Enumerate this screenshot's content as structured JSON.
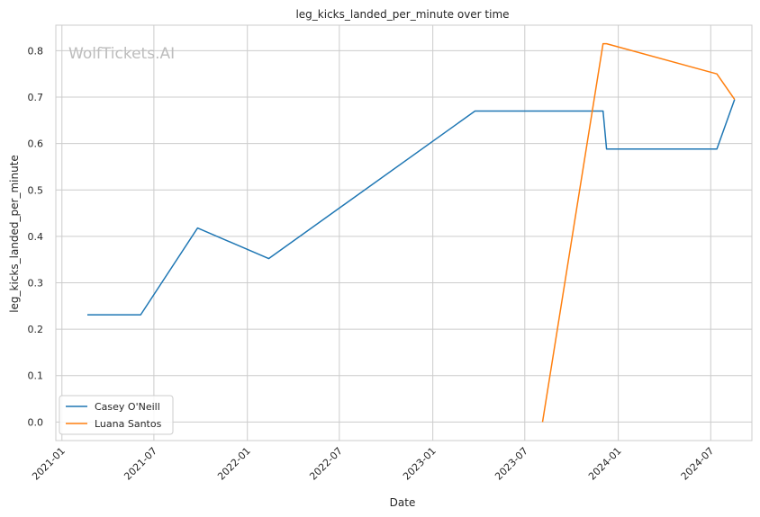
{
  "watermark": "WolfTickets.AI",
  "colors": {
    "grid": "#cccccc",
    "axes": "#cccccc",
    "series_0": "#1f77b4",
    "series_1": "#ff7f0e",
    "background": "#ffffff"
  },
  "chart_data": {
    "type": "line",
    "title": "leg_kicks_landed_per_minute over time",
    "xlabel": "Date",
    "ylabel": "leg_kicks_landed_per_minute",
    "x_ticks": [
      "2021-01",
      "2021-07",
      "2022-01",
      "2022-07",
      "2023-01",
      "2023-07",
      "2024-01",
      "2024-07"
    ],
    "y_ticks": [
      0.0,
      0.1,
      0.2,
      0.3,
      0.4,
      0.5,
      0.6,
      0.7,
      0.8
    ],
    "y_tick_labels": [
      "0.0",
      "0.1",
      "0.2",
      "0.3",
      "0.4",
      "0.5",
      "0.6",
      "0.7",
      "0.8"
    ],
    "ylim": [
      -0.04,
      0.855
    ],
    "xlim": [
      "2020-12-20",
      "2024-09-20"
    ],
    "grid": true,
    "legend_position": "lower-left",
    "series": [
      {
        "name": "Casey O'Neill",
        "points": [
          {
            "x": "2021-02-20",
            "y": 0.231
          },
          {
            "x": "2021-06-05",
            "y": 0.231
          },
          {
            "x": "2021-09-25",
            "y": 0.418
          },
          {
            "x": "2022-02-12",
            "y": 0.352
          },
          {
            "x": "2023-03-25",
            "y": 0.67
          },
          {
            "x": "2023-12-02",
            "y": 0.67
          },
          {
            "x": "2023-12-09",
            "y": 0.588
          },
          {
            "x": "2024-07-13",
            "y": 0.588
          },
          {
            "x": "2024-08-17",
            "y": 0.695
          }
        ]
      },
      {
        "name": "Luana Santos",
        "points": [
          {
            "x": "2023-08-05",
            "y": 0.0
          },
          {
            "x": "2023-12-02",
            "y": 0.815
          },
          {
            "x": "2023-12-09",
            "y": 0.815
          },
          {
            "x": "2024-07-13",
            "y": 0.75
          },
          {
            "x": "2024-08-17",
            "y": 0.695
          }
        ]
      }
    ]
  }
}
